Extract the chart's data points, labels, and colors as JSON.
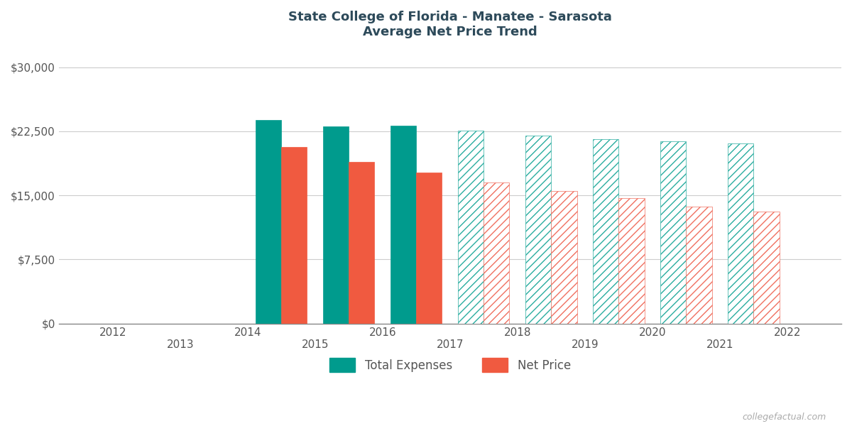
{
  "title_line1": "State College of Florida - Manatee - Sarasota",
  "title_line2": "Average Net Price Trend",
  "bar_positions": [
    14.5,
    15.5,
    16.5,
    17.5,
    18.5,
    19.5,
    20.5,
    21.5
  ],
  "total_expenses": [
    23800,
    23100,
    23200,
    22600,
    22000,
    21600,
    21300,
    21100
  ],
  "net_price": [
    20700,
    18900,
    17700,
    16500,
    15500,
    14700,
    13700,
    13100
  ],
  "teal_solid": "#009B8D",
  "coral_solid": "#F05A40",
  "teal_hatch_edge": "#2AADA0",
  "coral_hatch_edge": "#F07060",
  "hatch_pattern": "///",
  "bar_width": 0.38,
  "xlim_scale": [
    11.2,
    22.8
  ],
  "ylim": [
    0,
    32000
  ],
  "yticks": [
    0,
    7500,
    15000,
    22500,
    30000
  ],
  "ytick_labels": [
    "$0",
    "$7,500",
    "$15,000",
    "$22,500",
    "$30,000"
  ],
  "xticks_even": [
    12,
    14,
    16,
    18,
    20,
    22
  ],
  "xticks_odd": [
    13,
    15,
    17,
    19,
    21
  ],
  "bg_color": "#ffffff",
  "grid_color": "#cccccc",
  "title_color": "#2d4a5a",
  "axis_text_color": "#555555",
  "legend_label_expenses": "Total Expenses",
  "legend_label_price": "Net Price",
  "watermark": "collegefactual.com",
  "solid_indices": [
    0,
    1,
    2
  ],
  "hatched_indices": [
    3,
    4,
    5,
    6,
    7
  ]
}
